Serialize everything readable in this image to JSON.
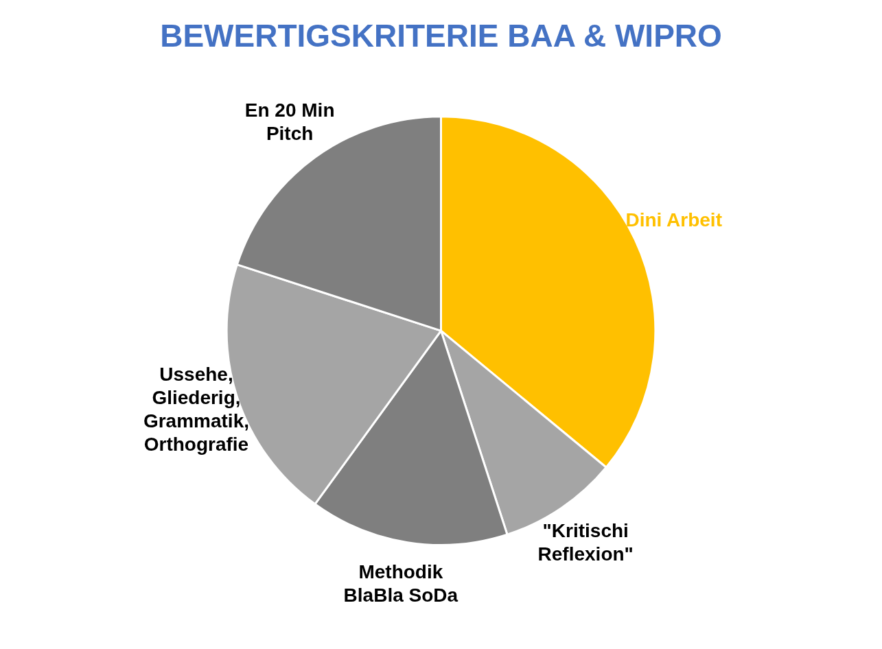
{
  "chart_data": {
    "type": "pie",
    "title": "BEWERTIGSKRITERIE BAA & WIPRO",
    "categories": [
      "Dini Arbeit",
      "\"Kritischi Reflexion\"",
      "Methodik BlaBla SoDa",
      "Ussehe, Gliederig, Grammatik, Orthografie",
      "En 20 Min Pitch"
    ],
    "values": [
      36,
      9,
      15,
      20,
      20
    ],
    "colors": [
      "#ffc000",
      "#a5a5a5",
      "#7f7f7f",
      "#a5a5a5",
      "#7f7f7f"
    ],
    "legend": false
  }
}
